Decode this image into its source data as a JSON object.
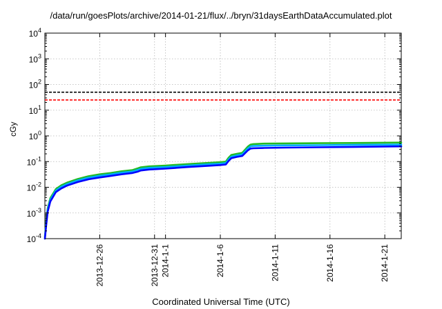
{
  "chart_data": {
    "type": "line",
    "title": "/data/run/goesPlots/archive/2014-01-21/flux/../bryn/31daysEarthDataAccumulated.plot",
    "xlabel": "Coordinated Universal Time (UTC)",
    "ylabel": "cGy",
    "x_type": "date",
    "xlim": [
      "2013-12-21",
      "2014-01-22T12:00"
    ],
    "ylim": [
      0.0001,
      10000
    ],
    "y_scale": "log",
    "y_ticks": [
      {
        "value": 0.0001,
        "base": "10",
        "exp": "-4"
      },
      {
        "value": 0.001,
        "base": "10",
        "exp": "-3"
      },
      {
        "value": 0.01,
        "base": "10",
        "exp": "-2"
      },
      {
        "value": 0.1,
        "base": "10",
        "exp": "-1"
      },
      {
        "value": 1,
        "base": "10",
        "exp": "0"
      },
      {
        "value": 10,
        "base": "10",
        "exp": "1"
      },
      {
        "value": 100,
        "base": "10",
        "exp": "2"
      },
      {
        "value": 1000,
        "base": "10",
        "exp": "3"
      },
      {
        "value": 10000,
        "base": "10",
        "exp": "4"
      }
    ],
    "x_ticks": [
      {
        "date": "2013-12-26",
        "label": "2013-12-26"
      },
      {
        "date": "2013-12-31",
        "label": "2013-12-31"
      },
      {
        "date": "2014-01-01",
        "label": "2014-1-1"
      },
      {
        "date": "2014-01-06",
        "label": "2014-1-6"
      },
      {
        "date": "2014-01-11",
        "label": "2014-1-11"
      },
      {
        "date": "2014-01-16",
        "label": "2014-1-16"
      },
      {
        "date": "2014-01-21",
        "label": "2014-1-21"
      }
    ],
    "grid": true,
    "reference_lines": [
      {
        "y": 50,
        "color": "#000000",
        "style": "dashed"
      },
      {
        "y": 25,
        "color": "#ff0000",
        "style": "dashed"
      }
    ],
    "series": [
      {
        "color": "#22bb22",
        "x": [
          "2013-12-21T00:00",
          "2013-12-21T03:00",
          "2013-12-21T06:00",
          "2013-12-21T12:00",
          "2013-12-22T00:00",
          "2013-12-22T12:00",
          "2013-12-23T00:00",
          "2013-12-24T00:00",
          "2013-12-25T00:00",
          "2013-12-26T00:00",
          "2013-12-27T00:00",
          "2013-12-28T00:00",
          "2013-12-29T00:00",
          "2013-12-29T12:00",
          "2013-12-29T18:00",
          "2013-12-30T12:00",
          "2014-01-01T00:00",
          "2014-01-03T00:00",
          "2014-01-05T00:00",
          "2014-01-06T00:00",
          "2014-01-06T12:00",
          "2014-01-06T18:00",
          "2014-01-07T00:00",
          "2014-01-07T12:00",
          "2014-01-08T00:00",
          "2014-01-08T12:00",
          "2014-01-08T18:00",
          "2014-01-09T00:00",
          "2014-01-10T00:00",
          "2014-01-12T00:00",
          "2014-01-15T00:00",
          "2014-01-18T00:00",
          "2014-01-22T12:00"
        ],
        "y": [
          0.00012,
          0.0005,
          0.0015,
          0.0038,
          0.0085,
          0.012,
          0.015,
          0.021,
          0.027,
          0.032,
          0.036,
          0.042,
          0.047,
          0.055,
          0.06,
          0.065,
          0.07,
          0.08,
          0.09,
          0.095,
          0.1,
          0.14,
          0.18,
          0.2,
          0.22,
          0.38,
          0.46,
          0.48,
          0.5,
          0.51,
          0.52,
          0.53,
          0.55
        ]
      },
      {
        "color": "#00aaff",
        "x": [
          "2013-12-21T00:00",
          "2013-12-21T03:00",
          "2013-12-21T06:00",
          "2013-12-21T12:00",
          "2013-12-22T00:00",
          "2013-12-22T12:00",
          "2013-12-23T00:00",
          "2013-12-24T00:00",
          "2013-12-25T00:00",
          "2013-12-26T00:00",
          "2013-12-27T00:00",
          "2013-12-28T00:00",
          "2013-12-29T00:00",
          "2013-12-29T12:00",
          "2013-12-29T18:00",
          "2013-12-30T12:00",
          "2014-01-01T00:00",
          "2014-01-03T00:00",
          "2014-01-05T00:00",
          "2014-01-06T00:00",
          "2014-01-06T12:00",
          "2014-01-06T18:00",
          "2014-01-07T00:00",
          "2014-01-07T12:00",
          "2014-01-08T00:00",
          "2014-01-08T12:00",
          "2014-01-08T18:00",
          "2014-01-09T00:00",
          "2014-01-10T00:00",
          "2014-01-12T00:00",
          "2014-01-15T00:00",
          "2014-01-18T00:00",
          "2014-01-22T12:00"
        ],
        "y": [
          0.0001,
          0.00042,
          0.0013,
          0.0033,
          0.0075,
          0.0105,
          0.0132,
          0.0185,
          0.0238,
          0.028,
          0.0318,
          0.037,
          0.0415,
          0.048,
          0.052,
          0.057,
          0.061,
          0.07,
          0.079,
          0.083,
          0.088,
          0.12,
          0.155,
          0.175,
          0.19,
          0.32,
          0.39,
          0.405,
          0.415,
          0.425,
          0.435,
          0.445,
          0.46
        ]
      },
      {
        "color": "#0000ff",
        "x": [
          "2013-12-21T00:00",
          "2013-12-21T03:00",
          "2013-12-21T06:00",
          "2013-12-21T12:00",
          "2013-12-22T00:00",
          "2013-12-22T12:00",
          "2013-12-23T00:00",
          "2013-12-24T00:00",
          "2013-12-25T00:00",
          "2013-12-26T00:00",
          "2013-12-27T00:00",
          "2013-12-28T00:00",
          "2013-12-29T00:00",
          "2013-12-29T12:00",
          "2013-12-29T18:00",
          "2013-12-30T12:00",
          "2014-01-01T00:00",
          "2014-01-03T00:00",
          "2014-01-05T00:00",
          "2014-01-06T00:00",
          "2014-01-06T12:00",
          "2014-01-06T18:00",
          "2014-01-07T00:00",
          "2014-01-07T12:00",
          "2014-01-08T00:00",
          "2014-01-08T12:00",
          "2014-01-08T18:00",
          "2014-01-09T00:00",
          "2014-01-10T00:00",
          "2014-01-12T00:00",
          "2014-01-15T00:00",
          "2014-01-18T00:00",
          "2014-01-22T12:00"
        ],
        "y": [
          0.0001,
          0.00035,
          0.0011,
          0.0028,
          0.0065,
          0.009,
          0.0115,
          0.016,
          0.0205,
          0.024,
          0.0275,
          0.032,
          0.036,
          0.041,
          0.045,
          0.049,
          0.053,
          0.061,
          0.069,
          0.073,
          0.077,
          0.105,
          0.135,
          0.152,
          0.165,
          0.27,
          0.32,
          0.33,
          0.34,
          0.35,
          0.36,
          0.37,
          0.39
        ]
      }
    ]
  }
}
